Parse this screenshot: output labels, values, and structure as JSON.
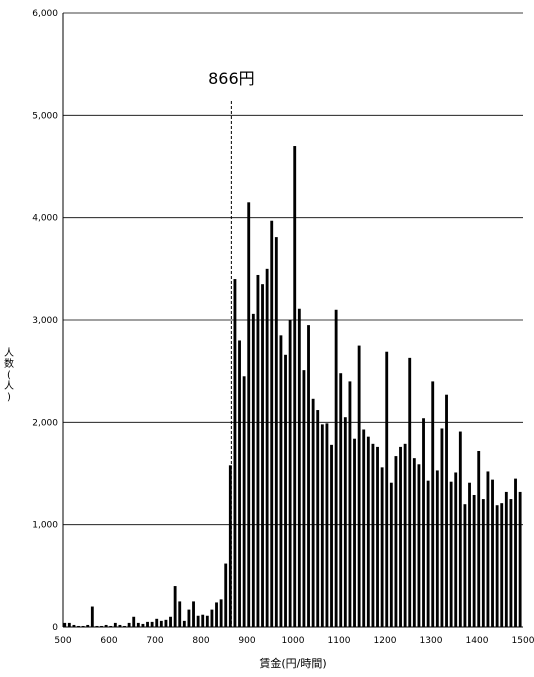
{
  "chart_data": {
    "type": "bar",
    "xlabel": "賃金(円/時間)",
    "ylabel": "人数(人)",
    "xlim": [
      500,
      1500
    ],
    "ylim": [
      0,
      6000
    ],
    "x_ticks": [
      "500",
      "600",
      "700",
      "800",
      "900",
      "1000",
      "1100",
      "1200",
      "1300",
      "1400",
      "1500"
    ],
    "y_ticks": [
      "0",
      "1,000",
      "2,000",
      "3,000",
      "4,000",
      "5,000",
      "6,000"
    ],
    "grid": "horizontal",
    "bar_color": "#000000",
    "annotation": {
      "label": "866円",
      "x": 866,
      "style": "dashed vertical line"
    },
    "bar_width": 10,
    "x": [
      500,
      510,
      520,
      530,
      540,
      550,
      560,
      570,
      580,
      590,
      600,
      610,
      620,
      630,
      640,
      650,
      660,
      670,
      680,
      690,
      700,
      710,
      720,
      730,
      740,
      750,
      760,
      770,
      780,
      790,
      800,
      810,
      820,
      830,
      840,
      850,
      860,
      870,
      880,
      890,
      900,
      910,
      920,
      930,
      940,
      950,
      960,
      970,
      980,
      990,
      1000,
      1010,
      1020,
      1030,
      1040,
      1050,
      1060,
      1070,
      1080,
      1090,
      1100,
      1110,
      1120,
      1130,
      1140,
      1150,
      1160,
      1170,
      1180,
      1190,
      1200,
      1210,
      1220,
      1230,
      1240,
      1250,
      1260,
      1270,
      1280,
      1290,
      1300,
      1310,
      1320,
      1330,
      1340,
      1350,
      1360,
      1370,
      1380,
      1390,
      1400,
      1410,
      1420,
      1430,
      1440,
      1450,
      1460,
      1470,
      1480,
      1490
    ],
    "values": [
      40,
      40,
      20,
      10,
      10,
      20,
      200,
      10,
      10,
      20,
      10,
      40,
      20,
      10,
      40,
      100,
      40,
      30,
      50,
      50,
      80,
      60,
      70,
      100,
      400,
      250,
      60,
      170,
      250,
      110,
      120,
      110,
      170,
      240,
      270,
      620,
      1580,
      3400,
      2800,
      2450,
      4150,
      3060,
      3440,
      3350,
      3500,
      3970,
      3810,
      2850,
      2660,
      3000,
      4700,
      3110,
      2510,
      2950,
      2230,
      2120,
      1980,
      1990,
      1780,
      3100,
      2480,
      2050,
      2400,
      1840,
      2750,
      1930,
      1860,
      1790,
      1760,
      1560,
      2690,
      1410,
      1670,
      1760,
      1790,
      2630,
      1650,
      1590,
      2040,
      1430,
      2400,
      1530,
      1940,
      2270,
      1420,
      1510,
      1910,
      1200,
      1410,
      1290,
      1720,
      1250,
      1520,
      1440,
      1190,
      1210,
      1320,
      1250,
      1450,
      1320
    ]
  }
}
